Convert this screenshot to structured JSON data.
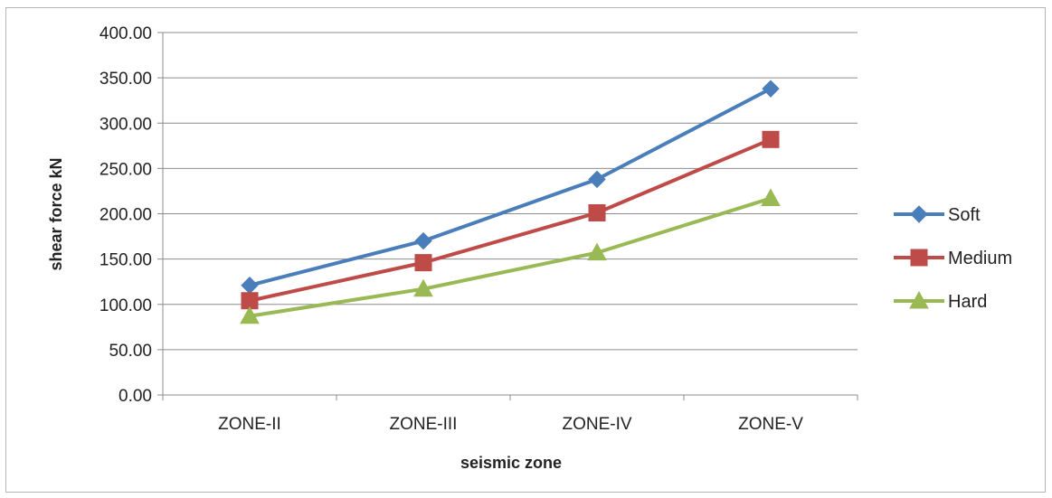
{
  "chart_data": {
    "type": "line",
    "title": "",
    "xlabel": "seismic zone",
    "ylabel": "shear force kN",
    "categories": [
      "ZONE-II",
      "ZONE-III",
      "ZONE-IV",
      "ZONE-V"
    ],
    "ylim": [
      0,
      400
    ],
    "yticks": [
      "0.00",
      "50.00",
      "100.00",
      "150.00",
      "200.00",
      "250.00",
      "300.00",
      "350.00",
      "400.00"
    ],
    "grid": true,
    "legend_position": "right",
    "series": [
      {
        "name": "Soft",
        "values": [
          121,
          170,
          238,
          338
        ],
        "color": "#4a7ebb",
        "marker": "diamond"
      },
      {
        "name": "Medium",
        "values": [
          104,
          146,
          201,
          282
        ],
        "color": "#be4b48",
        "marker": "square"
      },
      {
        "name": "Hard",
        "values": [
          87,
          117,
          157,
          217
        ],
        "color": "#98b954",
        "marker": "triangle"
      }
    ]
  }
}
